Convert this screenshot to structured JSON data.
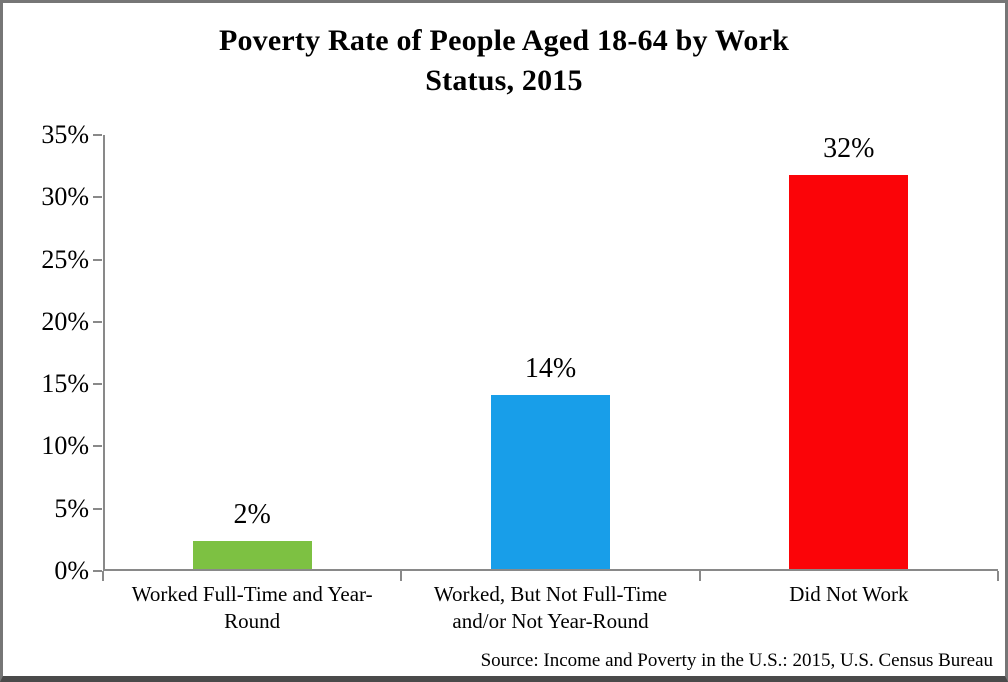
{
  "chart_data": {
    "type": "bar",
    "title": "Poverty Rate of People Aged 18-64 by Work Status, 2015",
    "title_lines": [
      "Poverty Rate of People Aged 18-64 by Work",
      "Status, 2015"
    ],
    "categories": [
      "Worked Full-Time and Year-Round",
      "Worked, But Not Full-Time and/or Not Year-Round",
      "Did Not Work"
    ],
    "values": [
      2.4,
      14.1,
      31.8
    ],
    "value_labels": [
      "2%",
      "14%",
      "32%"
    ],
    "bar_colors": [
      "#7dc142",
      "#189ee9",
      "#fb0408"
    ],
    "ylim": [
      0,
      35
    ],
    "ytick_step": 5,
    "ytick_labels": [
      "0%",
      "5%",
      "10%",
      "15%",
      "20%",
      "25%",
      "30%",
      "35%"
    ],
    "grid": false,
    "legend": "none",
    "xlabel": "",
    "ylabel": "",
    "axis_color": "#898989",
    "source": "Source: Income and Poverty in the U.S.: 2015, U.S. Census Bureau"
  }
}
